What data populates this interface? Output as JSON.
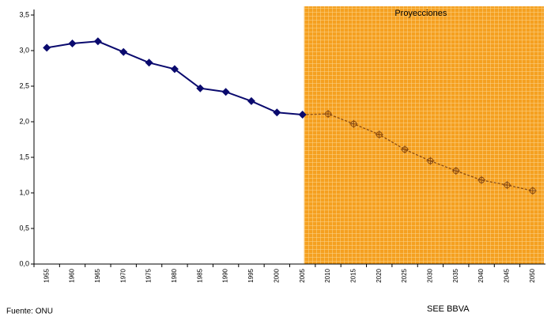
{
  "chart_data": {
    "type": "line",
    "categories": [
      "1955",
      "1960",
      "1965",
      "1970",
      "1975",
      "1980",
      "1985",
      "1990",
      "1995",
      "2000",
      "2005",
      "2010",
      "2015",
      "2020",
      "2025",
      "2030",
      "2035",
      "2040",
      "2045",
      "2050"
    ],
    "values": [
      3.04,
      3.1,
      3.13,
      2.98,
      2.83,
      2.74,
      2.47,
      2.42,
      2.29,
      2.13,
      2.1,
      2.11,
      1.97,
      1.82,
      1.61,
      1.45,
      1.31,
      1.18,
      1.11,
      1.03
    ],
    "color": "#0a0a6e",
    "projection": {
      "label": "Proyecciones",
      "start_index": 11,
      "color": "#f5a020",
      "line_color": "#8a4a10"
    },
    "ylim": [
      0,
      3.5
    ],
    "yticks": [
      {
        "value": 0,
        "label": "0,0"
      },
      {
        "value": 0.5,
        "label": "0,5"
      },
      {
        "value": 1,
        "label": "1,0"
      },
      {
        "value": 1.5,
        "label": "1,5"
      },
      {
        "value": 2,
        "label": "2,0"
      },
      {
        "value": 2.5,
        "label": "2,5"
      },
      {
        "value": 3,
        "label": "3,0"
      },
      {
        "value": 3.5,
        "label": "3,5"
      }
    ],
    "source": "Fuente: ONU",
    "credit": "SEE BBVA"
  }
}
